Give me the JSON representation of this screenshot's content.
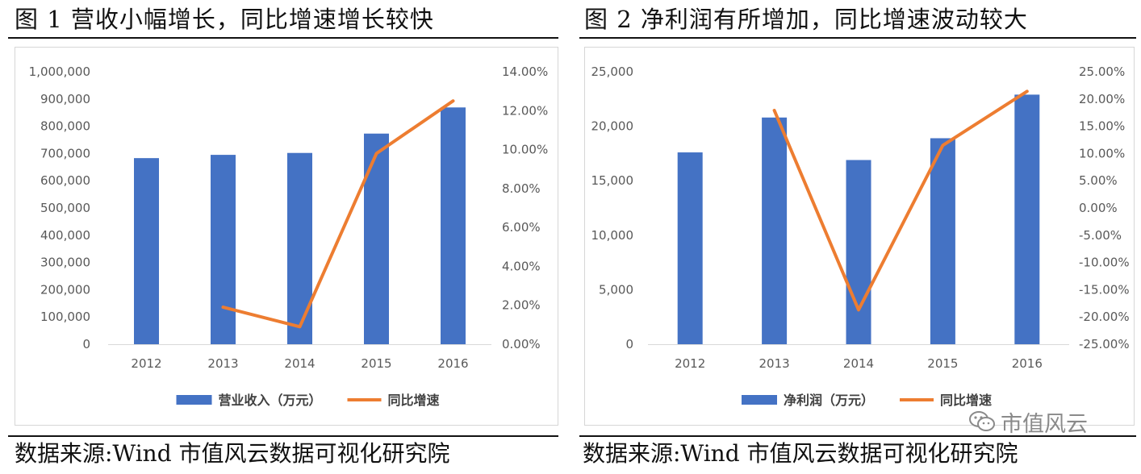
{
  "figures": [
    {
      "title": "图 1  营收小幅增长，同比增速增长较快"
    },
    {
      "title": "图 2  净利润有所增加，同比增速波动较大"
    }
  ],
  "source_text": "数据来源:Wind  市值风云数据可视化研究院",
  "watermark": {
    "text": "市值风云",
    "icon": "wechat-icon"
  },
  "colors": {
    "bar": "#4472C4",
    "line": "#ED7D31"
  },
  "chart_data": [
    {
      "type": "bar",
      "categories": [
        "2012",
        "2013",
        "2014",
        "2015",
        "2016"
      ],
      "series": [
        {
          "name": "营业收入（万元）",
          "type": "bar",
          "axis": "left",
          "values": [
            683000,
            695000,
            702000,
            773000,
            869000
          ]
        },
        {
          "name": "同比增速",
          "type": "line",
          "axis": "right",
          "values": [
            null,
            1.9,
            0.9,
            9.8,
            12.5
          ]
        }
      ],
      "y_left": {
        "min": 0,
        "max": 1000000,
        "step": 100000,
        "ticks": [
          "0",
          "100,000",
          "200,000",
          "300,000",
          "400,000",
          "500,000",
          "600,000",
          "700,000",
          "800,000",
          "900,000",
          "1,000,000"
        ]
      },
      "y_right": {
        "min": 0,
        "max": 14,
        "step": 2,
        "ticks": [
          "0.00%",
          "2.00%",
          "4.00%",
          "6.00%",
          "8.00%",
          "10.00%",
          "12.00%",
          "14.00%"
        ]
      },
      "legend": "bottom",
      "grid": false
    },
    {
      "type": "bar",
      "categories": [
        "2012",
        "2013",
        "2014",
        "2015",
        "2016"
      ],
      "series": [
        {
          "name": "净利润（万元）",
          "type": "bar",
          "axis": "left",
          "values": [
            17600,
            20800,
            16900,
            18900,
            22900
          ]
        },
        {
          "name": "同比增速",
          "type": "line",
          "axis": "right",
          "values": [
            null,
            17.9,
            -18.7,
            11.5,
            21.4
          ]
        }
      ],
      "y_left": {
        "min": 0,
        "max": 25000,
        "step": 5000,
        "ticks": [
          "0",
          "5,000",
          "10,000",
          "15,000",
          "20,000",
          "25,000"
        ]
      },
      "y_right": {
        "min": -25,
        "max": 25,
        "step": 5,
        "ticks": [
          "-25.00%",
          "-20.00%",
          "-15.00%",
          "-10.00%",
          "-5.00%",
          "0.00%",
          "5.00%",
          "10.00%",
          "15.00%",
          "20.00%",
          "25.00%"
        ]
      },
      "legend": "bottom",
      "grid": false
    }
  ]
}
